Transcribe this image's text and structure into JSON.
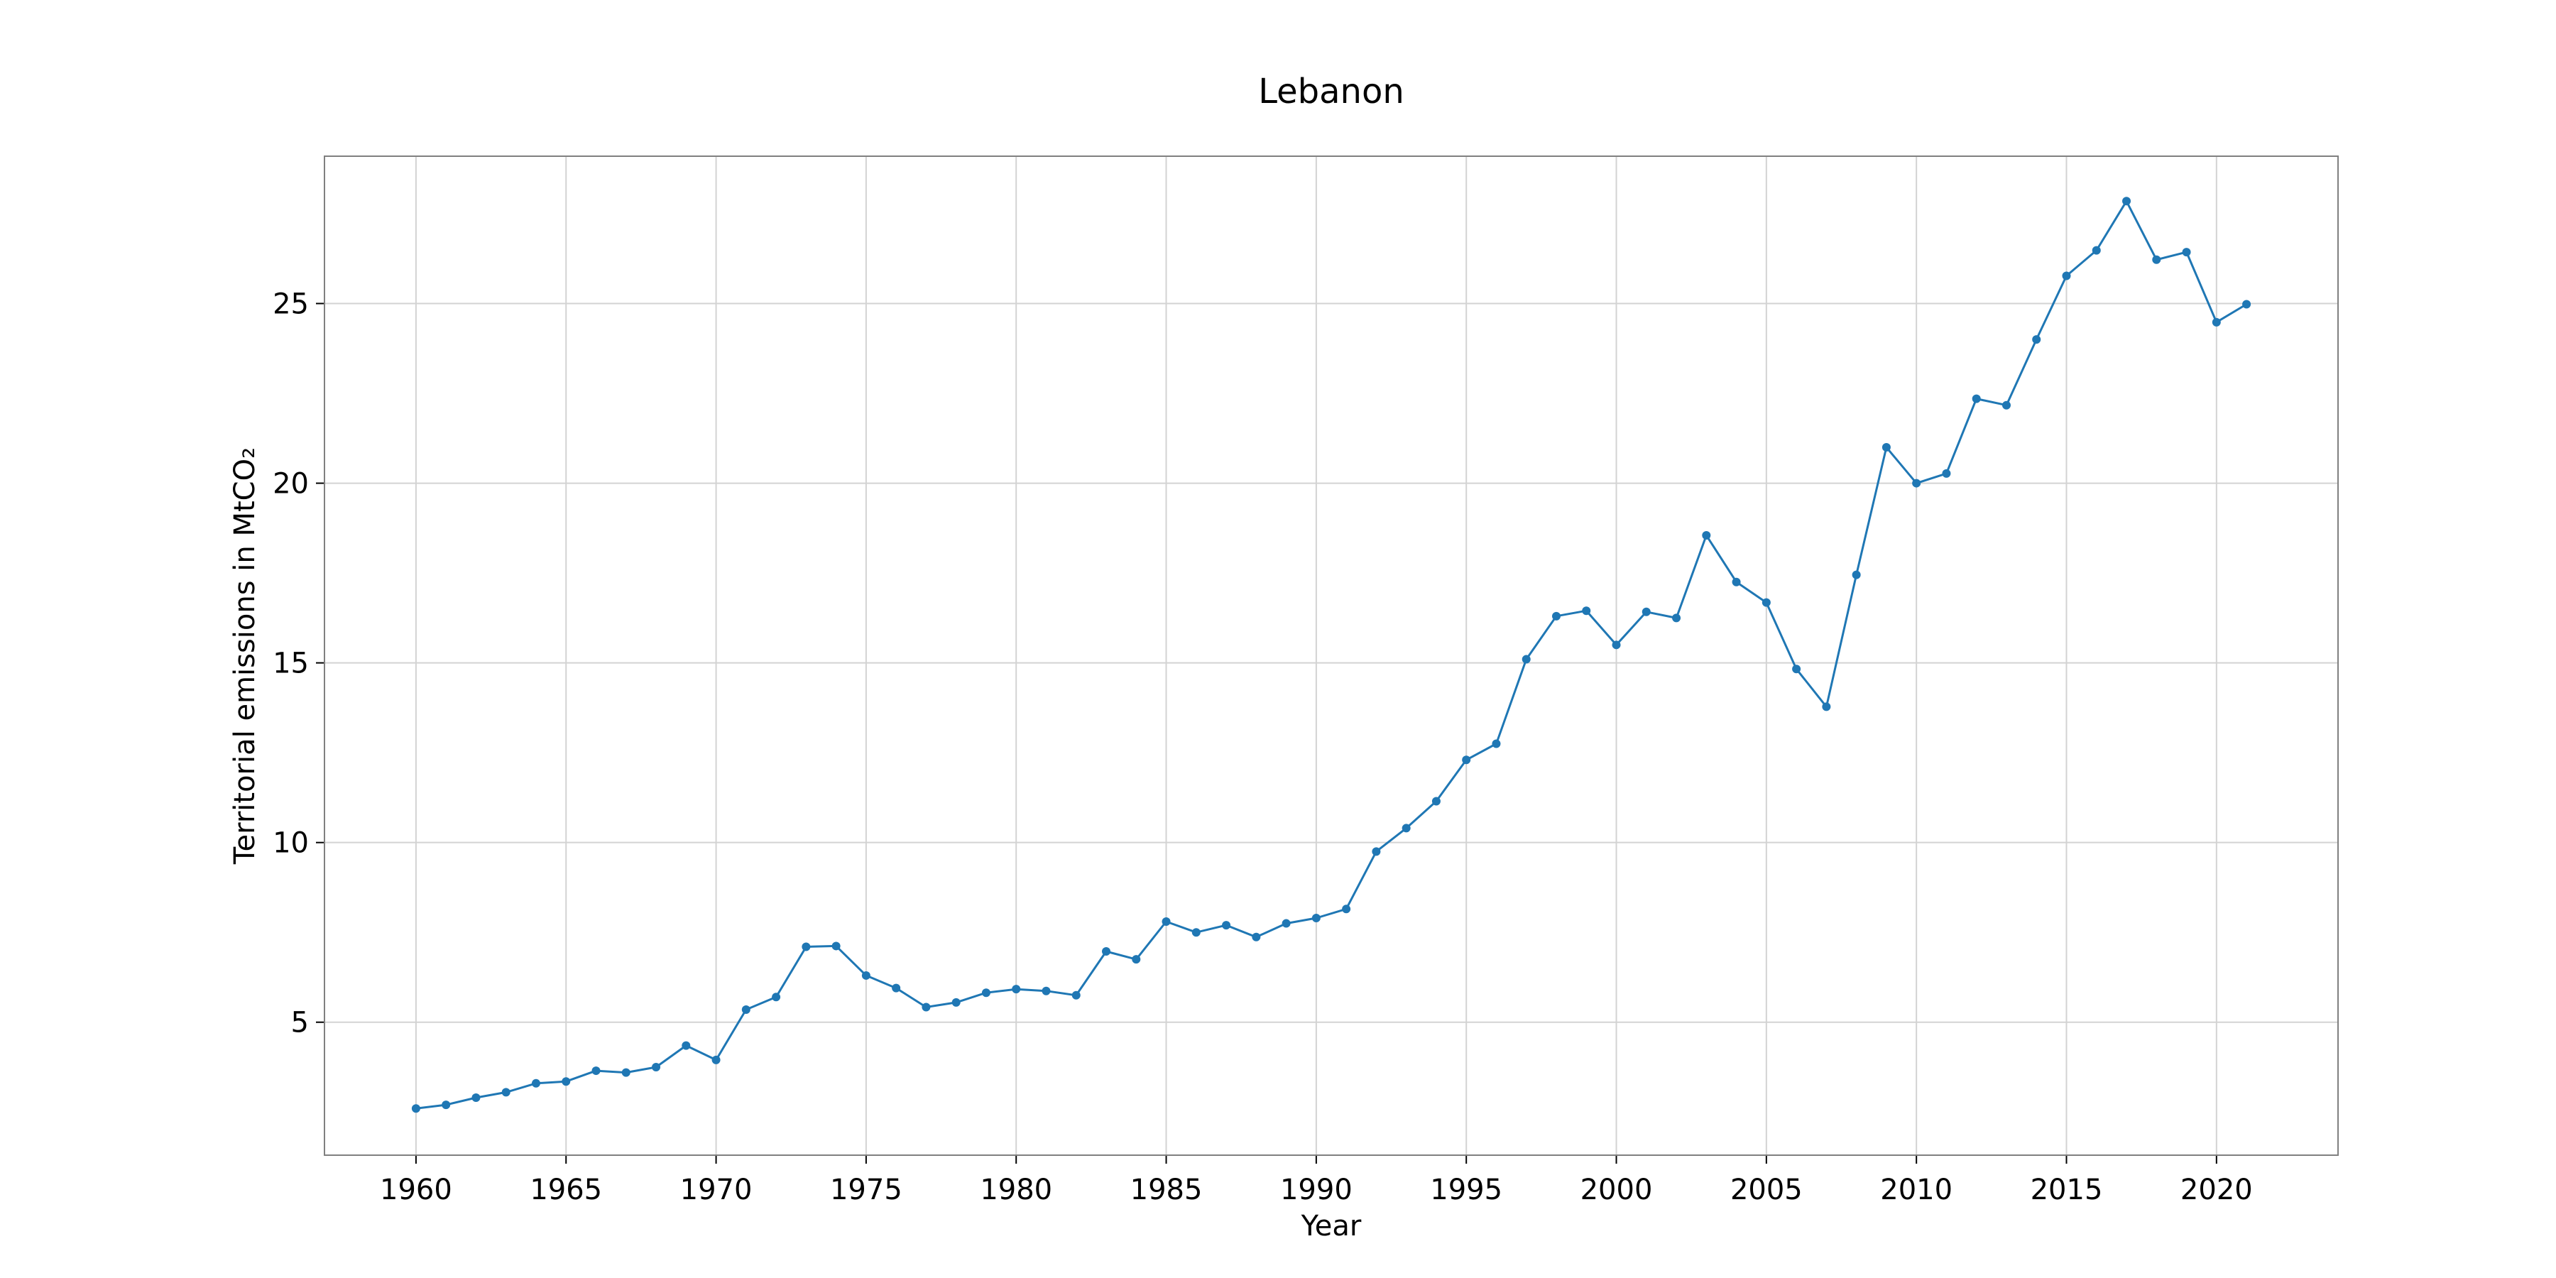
{
  "chart_data": {
    "type": "line",
    "title": "Lebanon",
    "xlabel": "Year",
    "ylabel": "Territorial emissions in MtCO₂",
    "xlim": [
      1956.95,
      2024.05
    ],
    "ylim": [
      1.3,
      29.1
    ],
    "xticks": [
      1960,
      1965,
      1970,
      1975,
      1980,
      1985,
      1990,
      1995,
      2000,
      2005,
      2010,
      2015,
      2020
    ],
    "yticks": [
      5,
      10,
      15,
      20,
      25
    ],
    "grid": true,
    "legend": "none",
    "colors": {
      "line": "#1f77b4",
      "grid": "#d3d3d3",
      "frame": "#808080"
    },
    "x": [
      1960,
      1961,
      1962,
      1963,
      1964,
      1965,
      1966,
      1967,
      1968,
      1969,
      1970,
      1971,
      1972,
      1973,
      1974,
      1975,
      1976,
      1977,
      1978,
      1979,
      1980,
      1981,
      1982,
      1983,
      1984,
      1985,
      1986,
      1987,
      1988,
      1989,
      1990,
      1991,
      1992,
      1993,
      1994,
      1995,
      1996,
      1997,
      1998,
      1999,
      2000,
      2001,
      2002,
      2003,
      2004,
      2005,
      2006,
      2007,
      2008,
      2009,
      2010,
      2011,
      2012,
      2013,
      2014,
      2015,
      2016,
      2017,
      2018,
      2019,
      2020,
      2021
    ],
    "series": [
      {
        "values": [
          2.6,
          2.7,
          2.9,
          3.05,
          3.3,
          3.35,
          3.65,
          3.6,
          3.75,
          4.35,
          3.95,
          5.35,
          5.7,
          7.1,
          7.12,
          6.3,
          5.95,
          5.42,
          5.55,
          5.82,
          5.92,
          5.87,
          5.75,
          6.97,
          6.75,
          7.8,
          7.5,
          7.7,
          7.37,
          7.75,
          7.9,
          8.15,
          9.75,
          10.4,
          11.15,
          12.3,
          12.75,
          15.1,
          16.3,
          16.45,
          15.5,
          16.42,
          16.25,
          18.55,
          17.25,
          16.68,
          14.83,
          13.78,
          17.45,
          21.0,
          20.0,
          20.27,
          22.35,
          22.17,
          24.0,
          25.77,
          26.48,
          27.85,
          26.22,
          26.43,
          24.48,
          24.98
        ]
      }
    ]
  }
}
